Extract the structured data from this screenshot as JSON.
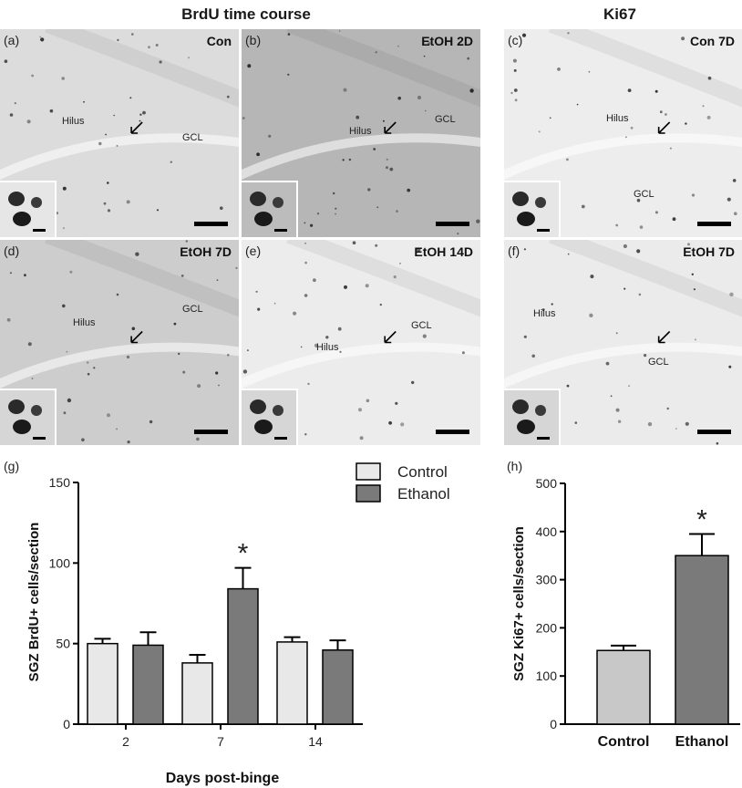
{
  "headers": {
    "brdu": "BrdU  time  course",
    "ki67": "Ki67"
  },
  "panels": [
    {
      "label": "(a)",
      "title": "Con",
      "regions": [
        "Hilus",
        "GCL"
      ],
      "tone": "#dcdcdc"
    },
    {
      "label": "(b)",
      "title": "EtOH 2D",
      "regions": [
        "Hilus",
        "GCL"
      ],
      "tone": "#b6b6b6"
    },
    {
      "label": "(c)",
      "title": "Con 7D",
      "regions": [
        "Hilus",
        "GCL"
      ],
      "tone": "#ededed"
    },
    {
      "label": "(d)",
      "title": "EtOH 7D",
      "regions": [
        "Hilus",
        "GCL"
      ],
      "tone": "#cdcdcd"
    },
    {
      "label": "(e)",
      "title": "EtOH 14D",
      "regions": [
        "Hilus",
        "GCL"
      ],
      "tone": "#ececec"
    },
    {
      "label": "(f)",
      "title": "EtOH 7D",
      "regions": [
        "Hilus",
        "GCL"
      ],
      "tone": "#ebebeb"
    }
  ],
  "colors": {
    "control": "#e8e8e8",
    "ethanol": "#7a7a7a",
    "h_control": "#c8c8c8",
    "h_ethanol": "#7a7a7a"
  },
  "chart_data": [
    {
      "panel": "(g)",
      "type": "bar",
      "xlabel": "Days post-binge",
      "ylabel": "SGZ BrdU+ cells/section",
      "categories": [
        "2",
        "7",
        "14"
      ],
      "ylim": [
        0,
        150
      ],
      "yticks": [
        0,
        50,
        100,
        150
      ],
      "legend": "top-right",
      "series": [
        {
          "name": "Control",
          "values": [
            50,
            38,
            51
          ],
          "errors": [
            3,
            5,
            3
          ]
        },
        {
          "name": "Ethanol",
          "values": [
            49,
            84,
            46
          ],
          "errors": [
            8,
            13,
            6
          ]
        }
      ],
      "annotations": [
        {
          "category": "7",
          "series": "Ethanol",
          "text": "*"
        }
      ]
    },
    {
      "panel": "(h)",
      "type": "bar",
      "xlabel": "",
      "ylabel": "SGZ Ki67+ cells/section",
      "categories": [
        "Control",
        "Ethanol"
      ],
      "ylim": [
        0,
        500
      ],
      "yticks": [
        0,
        100,
        200,
        300,
        400,
        500
      ],
      "values": [
        153,
        350
      ],
      "errors": [
        10,
        45
      ],
      "annotations": [
        {
          "category": "Ethanol",
          "text": "*"
        }
      ]
    }
  ]
}
